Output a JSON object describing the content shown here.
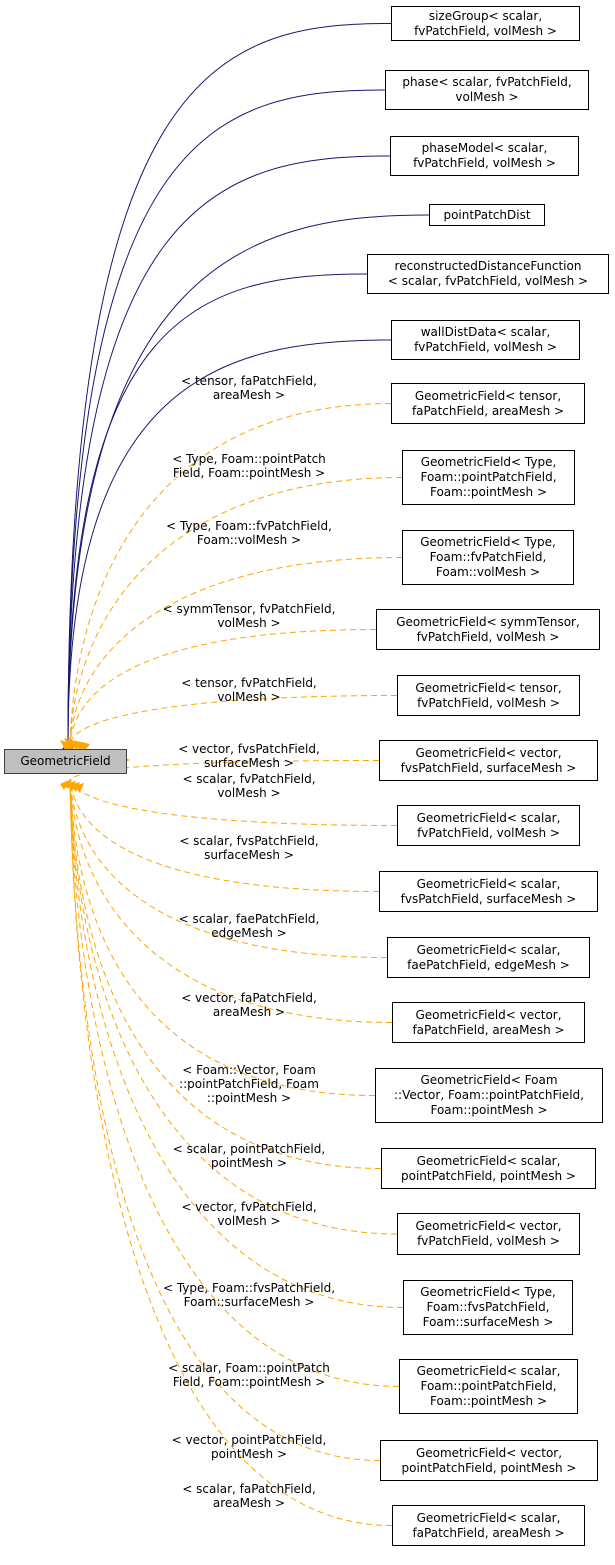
{
  "root": {
    "label": "GeometricField"
  },
  "edge_colors": {
    "inheritance": "#191970",
    "template": "#ffa500"
  },
  "children": [
    {
      "lines": [
        "sizeGroup< scalar,",
        "fvPatchField, volMesh >"
      ],
      "edge": "inheritance",
      "label": []
    },
    {
      "lines": [
        "phase< scalar, fvPatchField,",
        "volMesh >"
      ],
      "edge": "inheritance",
      "label": []
    },
    {
      "lines": [
        "phaseModel< scalar,",
        "fvPatchField, volMesh >"
      ],
      "edge": "inheritance",
      "label": []
    },
    {
      "lines": [
        "pointPatchDist"
      ],
      "edge": "inheritance",
      "label": []
    },
    {
      "lines": [
        "reconstructedDistanceFunction",
        "< scalar, fvPatchField, volMesh >"
      ],
      "edge": "inheritance",
      "label": []
    },
    {
      "lines": [
        "wallDistData< scalar,",
        "fvPatchField, volMesh >"
      ],
      "edge": "inheritance",
      "label": []
    },
    {
      "lines": [
        "GeometricField< tensor,",
        "faPatchField, areaMesh >"
      ],
      "edge": "template",
      "label": [
        "< tensor, faPatchField,",
        "areaMesh >"
      ]
    },
    {
      "lines": [
        "GeometricField< Type,",
        "Foam::pointPatchField,",
        "Foam::pointMesh >"
      ],
      "edge": "template",
      "label": [
        "< Type, Foam::pointPatch",
        "Field, Foam::pointMesh >"
      ]
    },
    {
      "lines": [
        "GeometricField< Type,",
        "Foam::fvPatchField,",
        "Foam::volMesh >"
      ],
      "edge": "template",
      "label": [
        "< Type, Foam::fvPatchField,",
        "Foam::volMesh >"
      ]
    },
    {
      "lines": [
        "GeometricField< symmTensor,",
        "fvPatchField, volMesh >"
      ],
      "edge": "template",
      "label": [
        "< symmTensor, fvPatchField,",
        "volMesh >"
      ]
    },
    {
      "lines": [
        "GeometricField< tensor,",
        "fvPatchField, volMesh >"
      ],
      "edge": "template",
      "label": [
        "< tensor, fvPatchField,",
        "volMesh >"
      ]
    },
    {
      "lines": [
        "GeometricField< vector,",
        "fvsPatchField, surfaceMesh >"
      ],
      "edge": "template",
      "label": [
        "< vector, fvsPatchField,",
        "surfaceMesh >"
      ]
    },
    {
      "lines": [
        "GeometricField< scalar,",
        "fvPatchField, volMesh >"
      ],
      "edge": "template",
      "label": [
        "< scalar, fvPatchField,",
        "volMesh >"
      ]
    },
    {
      "lines": [
        "GeometricField< scalar,",
        "fvsPatchField, surfaceMesh >"
      ],
      "edge": "template",
      "label": [
        "< scalar, fvsPatchField,",
        "surfaceMesh >"
      ]
    },
    {
      "lines": [
        "GeometricField< scalar,",
        "faePatchField, edgeMesh >"
      ],
      "edge": "template",
      "label": [
        "< scalar, faePatchField,",
        "edgeMesh >"
      ]
    },
    {
      "lines": [
        "GeometricField< vector,",
        "faPatchField, areaMesh >"
      ],
      "edge": "template",
      "label": [
        "< vector, faPatchField,",
        "areaMesh >"
      ]
    },
    {
      "lines": [
        "GeometricField< Foam",
        "::Vector, Foam::pointPatchField,",
        "Foam::pointMesh >"
      ],
      "edge": "template",
      "label": [
        "< Foam::Vector, Foam",
        "::pointPatchField, Foam",
        "::pointMesh >"
      ]
    },
    {
      "lines": [
        "GeometricField< scalar,",
        "pointPatchField, pointMesh >"
      ],
      "edge": "template",
      "label": [
        "< scalar, pointPatchField,",
        "pointMesh >"
      ]
    },
    {
      "lines": [
        "GeometricField< vector,",
        "fvPatchField, volMesh >"
      ],
      "edge": "template",
      "label": [
        "< vector, fvPatchField,",
        "volMesh >"
      ]
    },
    {
      "lines": [
        "GeometricField< Type,",
        "Foam::fvsPatchField,",
        "Foam::surfaceMesh >"
      ],
      "edge": "template",
      "label": [
        "< Type, Foam::fvsPatchField,",
        "Foam::surfaceMesh >"
      ]
    },
    {
      "lines": [
        "GeometricField< scalar,",
        "Foam::pointPatchField,",
        "Foam::pointMesh >"
      ],
      "edge": "template",
      "label": [
        "< scalar, Foam::pointPatch",
        "Field, Foam::pointMesh >"
      ]
    },
    {
      "lines": [
        "GeometricField< vector,",
        "pointPatchField, pointMesh >"
      ],
      "edge": "template",
      "label": [
        "< vector, pointPatchField,",
        "pointMesh >"
      ]
    },
    {
      "lines": [
        "GeometricField< scalar,",
        "faPatchField, areaMesh >"
      ],
      "edge": "template",
      "label": [
        "< scalar, faPatchField,",
        "areaMesh >"
      ]
    }
  ]
}
